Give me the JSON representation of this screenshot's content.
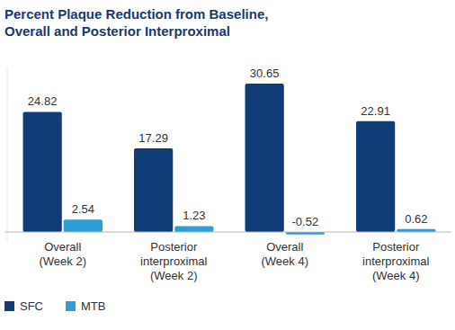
{
  "chart_data": {
    "type": "bar",
    "title": "Percent Plaque Reduction from Baseline, Overall and Posterior Interproximal",
    "categories": [
      "Overall (Week 2)",
      "Posterior interproximal (Week 2)",
      "Overall (Week 4)",
      "Posterior interproximal (Week 4)"
    ],
    "series": [
      {
        "name": "SFC",
        "color": "#103d78",
        "values": [
          24.82,
          17.29,
          30.65,
          22.91
        ]
      },
      {
        "name": "MTB",
        "color": "#2b9fd9",
        "values": [
          2.54,
          1.23,
          -0.52,
          0.62
        ]
      }
    ],
    "ylim": [
      -2,
      34
    ],
    "yticks": [
      0
    ],
    "grid": true,
    "tick_labels": false,
    "data_labels": true,
    "legend": "bottom-left"
  }
}
